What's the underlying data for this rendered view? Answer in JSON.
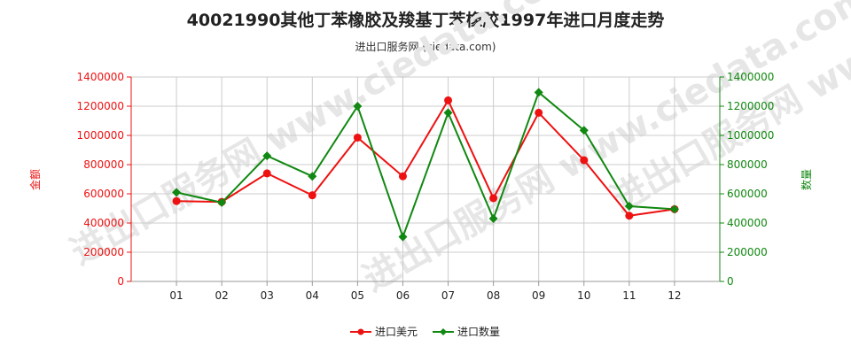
{
  "title": "40021990其他丁苯橡胶及羧基丁苯橡胶1997年进口月度走势",
  "subtitle": "进出口服务网 (ciedata.com)",
  "watermark": "进出口服务网 www.ciedata.com",
  "colors": {
    "value": "#ee1111",
    "quantity": "#118811",
    "grid": "#cccccc"
  },
  "chart_data": {
    "type": "line",
    "categories": [
      "01",
      "02",
      "03",
      "04",
      "05",
      "06",
      "07",
      "08",
      "09",
      "10",
      "11",
      "12"
    ],
    "ylabel_left": "金额",
    "ylabel_right": "数量",
    "ylim_left": [
      0,
      1400000
    ],
    "ylim_right": [
      0,
      1400000
    ],
    "yticks_left": [
      "0",
      "200000",
      "400000",
      "600000",
      "800000",
      "1000000",
      "1200000",
      "1400000"
    ],
    "yticks_right": [
      "0",
      "200000",
      "400000",
      "600000",
      "800000",
      "1000000",
      "1200000",
      "1400000"
    ],
    "grid": true,
    "legend_position": "bottom",
    "series": [
      {
        "name": "进口美元",
        "axis": "left",
        "color": "#ee1111",
        "marker": "circle",
        "values": [
          550000,
          545000,
          740000,
          590000,
          985000,
          720000,
          1240000,
          570000,
          1155000,
          830000,
          450000,
          495000
        ]
      },
      {
        "name": "进口数量",
        "axis": "right",
        "color": "#118811",
        "marker": "diamond",
        "values": [
          610000,
          540000,
          860000,
          720000,
          1200000,
          305000,
          1155000,
          430000,
          1295000,
          1035000,
          515000,
          495000
        ]
      }
    ]
  }
}
